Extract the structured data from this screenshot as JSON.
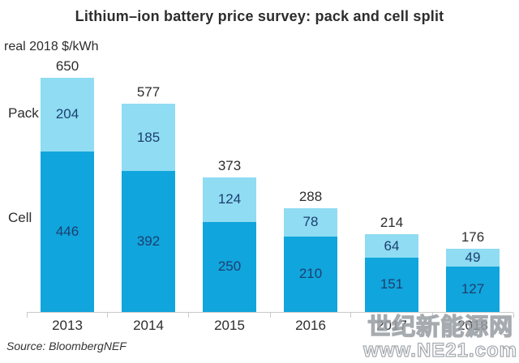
{
  "title": "Lithium–ion battery price survey: pack and cell split",
  "unit_label": "real 2018 $/kWh",
  "series_labels": {
    "pack": "Pack",
    "cell": "Cell"
  },
  "source": "Source: BloombergNEF",
  "watermark": {
    "line1": "世纪新能源网",
    "line2": "www.NE21.com"
  },
  "colors": {
    "pack": "#8FDCF3",
    "cell": "#10A5DC",
    "value_text": "#1D3F70",
    "total_text": "#2D2D2D",
    "axis": "#C9C9C9",
    "title_text": "#2D2D2D"
  },
  "chart_data": {
    "type": "bar",
    "stacked": true,
    "title": "Lithium–ion battery price survey: pack and cell split",
    "ylabel": "real 2018 $/kWh",
    "categories": [
      "2013",
      "2014",
      "2015",
      "2016",
      "2017",
      "2018"
    ],
    "series": [
      {
        "name": "Cell",
        "values": [
          446,
          392,
          250,
          210,
          151,
          127
        ]
      },
      {
        "name": "Pack",
        "values": [
          204,
          185,
          124,
          78,
          64,
          49
        ]
      }
    ],
    "totals": [
      650,
      577,
      373,
      288,
      214,
      176
    ],
    "ylim": [
      0,
      700
    ],
    "grid": false,
    "legend": "inline-left",
    "source": "Source: BloombergNEF"
  }
}
